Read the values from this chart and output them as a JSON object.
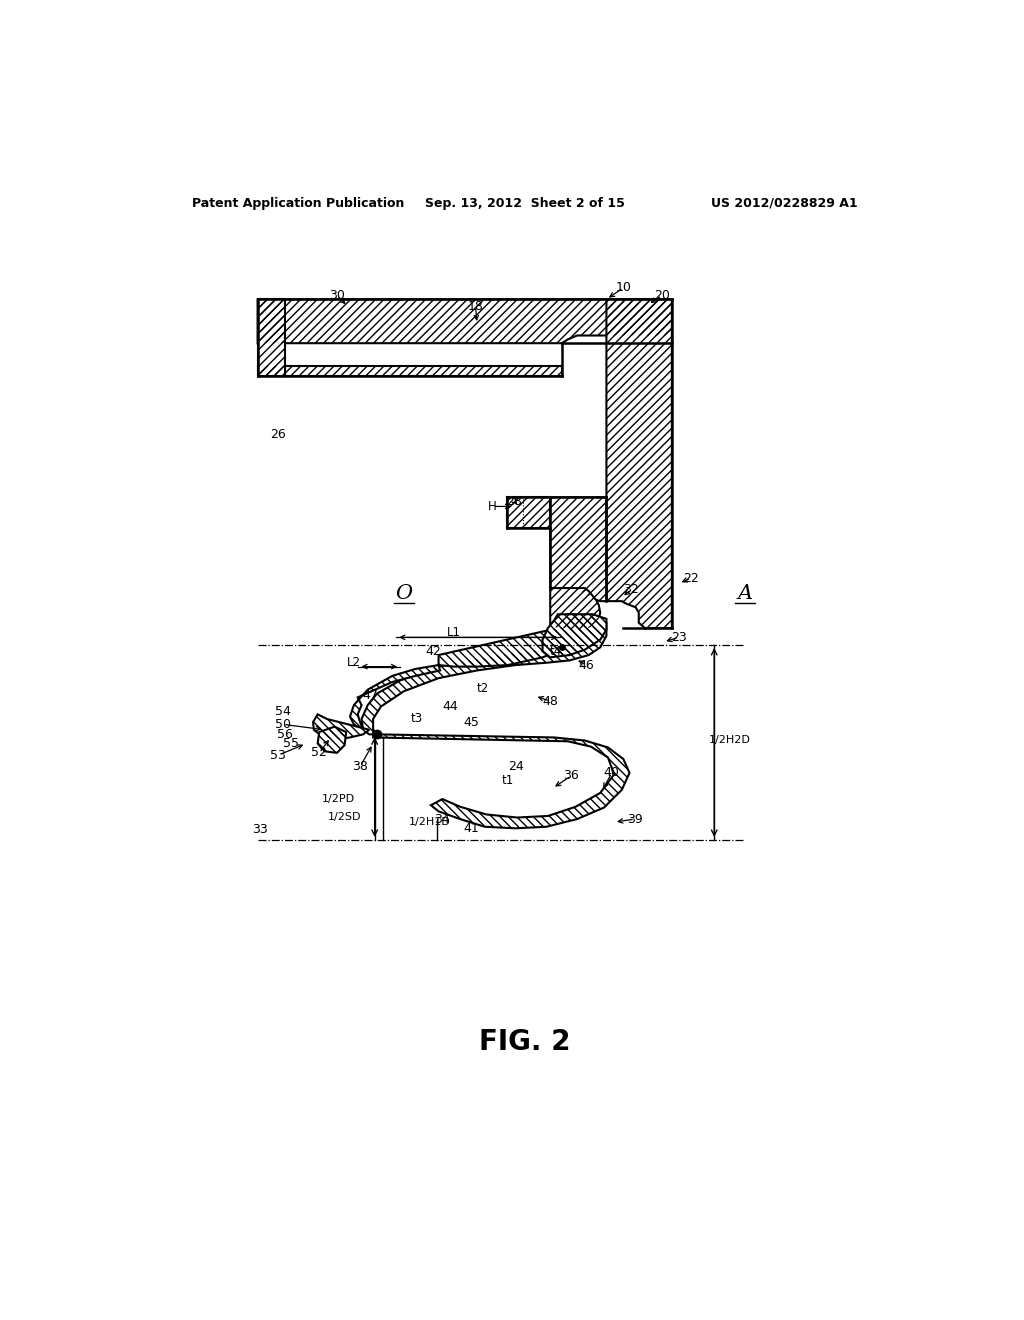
{
  "title": "FIG. 2",
  "header_left": "Patent Application Publication",
  "header_center": "Sep. 13, 2012  Sheet 2 of 15",
  "header_right": "US 2012/0228829 A1",
  "bg": "#ffffff",
  "housing_hatch": "////",
  "seal_hatch": "\\\\\\\\"
}
